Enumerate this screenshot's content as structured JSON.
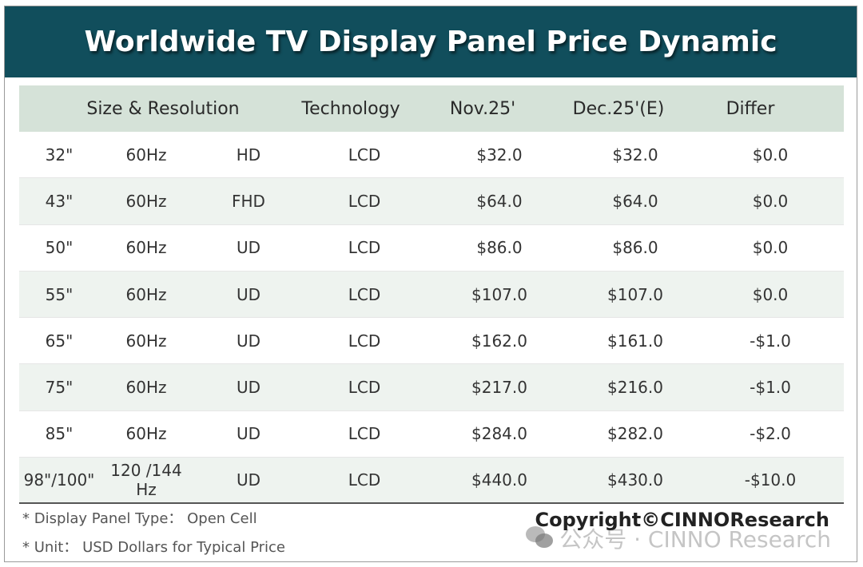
{
  "title": "Worldwide TV Display Panel Price Dynamic",
  "colors": {
    "banner": "#114e5c",
    "header_bg": "#d5e2d8",
    "alt_row_bg": "#eef3ef"
  },
  "headers": {
    "size_resolution": "Size & Resolution",
    "technology": "Technology",
    "nov": "Nov.25'",
    "dec": "Dec.25'(E)",
    "differ": "Differ"
  },
  "rows": [
    {
      "size": "32\"",
      "hz": "60Hz",
      "res": "HD",
      "tech": "LCD",
      "nov": "$32.0",
      "dec": "$32.0",
      "differ": "$0.0"
    },
    {
      "size": "43\"",
      "hz": "60Hz",
      "res": "FHD",
      "tech": "LCD",
      "nov": "$64.0",
      "dec": "$64.0",
      "differ": "$0.0"
    },
    {
      "size": "50\"",
      "hz": "60Hz",
      "res": "UD",
      "tech": "LCD",
      "nov": "$86.0",
      "dec": "$86.0",
      "differ": "$0.0"
    },
    {
      "size": "55\"",
      "hz": "60Hz",
      "res": "UD",
      "tech": "LCD",
      "nov": "$107.0",
      "dec": "$107.0",
      "differ": "$0.0"
    },
    {
      "size": "65\"",
      "hz": "60Hz",
      "res": "UD",
      "tech": "LCD",
      "nov": "$162.0",
      "dec": "$161.0",
      "differ": "-$1.0"
    },
    {
      "size": "75\"",
      "hz": "60Hz",
      "res": "UD",
      "tech": "LCD",
      "nov": "$217.0",
      "dec": "$216.0",
      "differ": "-$1.0"
    },
    {
      "size": "85\"",
      "hz": "60Hz",
      "res": "UD",
      "tech": "LCD",
      "nov": "$284.0",
      "dec": "$282.0",
      "differ": "-$2.0"
    },
    {
      "size": "98\"/100\"",
      "hz": "120 /144 Hz",
      "res": "UD",
      "tech": "LCD",
      "nov": "$440.0",
      "dec": "$430.0",
      "differ": "-$10.0"
    }
  ],
  "notes": [
    "* Display Panel Type： Open Cell",
    "* Unit： USD Dollars for Typical Price"
  ],
  "copyright": "Copyright©CINNOResearch",
  "watermark": {
    "icon": "wechat-icon",
    "text": "公众号 · CINNO Research"
  }
}
